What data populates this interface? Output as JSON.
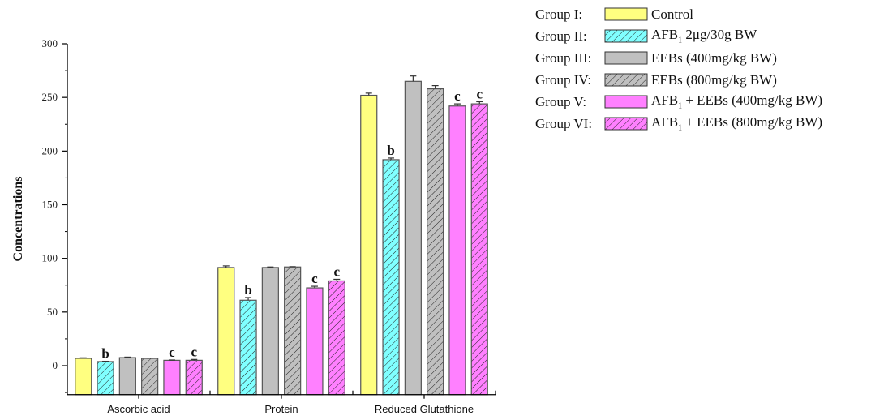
{
  "chart_data": {
    "type": "bar",
    "title": "",
    "xlabel": "",
    "ylabel": "Concentrations",
    "ylim": [
      -27,
      300
    ],
    "yticks": [
      0,
      50,
      100,
      150,
      200,
      250,
      300
    ],
    "grid": false,
    "legend_position": "top-right",
    "categories": [
      "Ascorbic acid",
      "Protein",
      "Reduced Glutathione"
    ],
    "series": [
      {
        "name": "Group I",
        "label": "Control",
        "color": "#FFFF80",
        "hatched": false,
        "values": [
          6.8,
          91.5,
          252
        ],
        "errors": [
          0.5,
          1.5,
          2
        ],
        "annotations": [
          "",
          "",
          ""
        ]
      },
      {
        "name": "Group II",
        "label": "AFB₁ 2μg/30g BW",
        "color": "#80FFFF",
        "hatched": true,
        "values": [
          3.8,
          61,
          192
        ],
        "errors": [
          0.3,
          2.5,
          1.5
        ],
        "annotations": [
          "b",
          "b",
          "b"
        ]
      },
      {
        "name": "Group III",
        "label": "EEBs (400mg/kg BW)",
        "color": "#C0C0C0",
        "hatched": false,
        "values": [
          7.5,
          91.5,
          265
        ],
        "errors": [
          0.5,
          0.5,
          5
        ],
        "annotations": [
          "",
          "",
          ""
        ]
      },
      {
        "name": "Group IV",
        "label": "EEBs (800mg/kg BW)",
        "color": "#C0C0C0",
        "hatched": true,
        "values": [
          6.8,
          92,
          258
        ],
        "errors": [
          0.3,
          0.3,
          3
        ],
        "annotations": [
          "",
          "",
          ""
        ]
      },
      {
        "name": "Group V",
        "label": "AFB₁ + EEBs (400mg/kg BW)",
        "color": "#FF80FF",
        "hatched": false,
        "values": [
          5,
          72.5,
          242
        ],
        "errors": [
          0.3,
          1.5,
          2
        ],
        "annotations": [
          "c",
          "c",
          "c"
        ]
      },
      {
        "name": "Group VI",
        "label": "AFB₁ + EEBs (800mg/kg BW)",
        "color": "#FF80FF",
        "hatched": true,
        "values": [
          5,
          79,
          244
        ],
        "errors": [
          0.8,
          1.5,
          2
        ],
        "annotations": [
          "c",
          "c",
          "c"
        ]
      }
    ]
  },
  "legend": [
    {
      "group": "Group I:",
      "text": "Control"
    },
    {
      "group": "Group II:",
      "text_pre": "AFB",
      "sub": "1",
      "text_post": " 2μg/30g BW"
    },
    {
      "group": "Group III:",
      "text": "EEBs (400mg/kg BW)"
    },
    {
      "group": "Group IV:",
      "text": "EEBs (800mg/kg BW)"
    },
    {
      "group": "Group V:",
      "text_pre": "AFB",
      "sub": "1",
      "text_post": " + EEBs (400mg/kg BW)"
    },
    {
      "group": "Group VI:",
      "text_pre": "AFB",
      "sub": "1",
      "text_post": " + EEBs (800mg/kg BW)"
    }
  ]
}
